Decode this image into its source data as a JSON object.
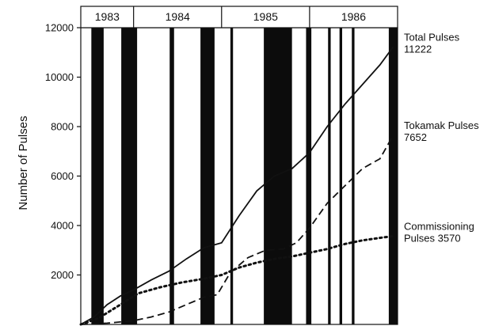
{
  "chart_data": {
    "type": "line",
    "ylabel": "Number of Pulses",
    "ylim": [
      0,
      12000
    ],
    "y_ticks": [
      2000,
      4000,
      6000,
      8000,
      10000,
      12000
    ],
    "xlim": [
      1983.4,
      1987.0
    ],
    "years": [
      {
        "label": "1983",
        "start": 1983.4,
        "end": 1984.0
      },
      {
        "label": "1984",
        "start": 1984.0,
        "end": 1985.0
      },
      {
        "label": "1985",
        "start": 1985.0,
        "end": 1986.0
      },
      {
        "label": "1986",
        "start": 1986.0,
        "end": 1987.0
      }
    ],
    "shutdowns": [
      [
        1983.52,
        1983.66
      ],
      [
        1983.86,
        1984.04
      ],
      [
        1984.41,
        1984.46
      ],
      [
        1984.76,
        1984.92
      ],
      [
        1985.1,
        1985.13
      ],
      [
        1985.48,
        1985.8
      ],
      [
        1985.96,
        1986.02
      ],
      [
        1986.21,
        1986.24
      ],
      [
        1986.34,
        1986.37
      ],
      [
        1986.48,
        1986.51
      ],
      [
        1986.9,
        1987.0
      ]
    ],
    "series": [
      {
        "name": "Total Pulses",
        "style": "solid",
        "color": "#111111",
        "x": [
          1983.4,
          1983.55,
          1983.7,
          1983.85,
          1984.0,
          1984.2,
          1984.4,
          1984.6,
          1984.8,
          1985.0,
          1985.2,
          1985.4,
          1985.6,
          1985.8,
          1986.0,
          1986.2,
          1986.4,
          1986.6,
          1986.8,
          1986.95
        ],
        "y": [
          0,
          300,
          800,
          1150,
          1400,
          1800,
          2150,
          2650,
          3100,
          3300,
          4400,
          5400,
          6000,
          6300,
          6950,
          8000,
          8900,
          9700,
          10500,
          11222
        ]
      },
      {
        "name": "Tokamak Pulses",
        "style": "dashed",
        "color": "#111111",
        "x": [
          1983.4,
          1983.7,
          1984.0,
          1984.2,
          1984.4,
          1984.6,
          1984.8,
          1984.95,
          1985.1,
          1985.3,
          1985.5,
          1985.7,
          1985.85,
          1986.0,
          1986.2,
          1986.4,
          1986.6,
          1986.8,
          1986.95
        ],
        "y": [
          0,
          50,
          150,
          300,
          500,
          800,
          1100,
          1200,
          2100,
          2700,
          3000,
          3050,
          3300,
          3900,
          4900,
          5600,
          6300,
          6700,
          7652
        ]
      },
      {
        "name": "Commissioning Pulses",
        "style": "dotted",
        "color": "#111111",
        "x": [
          1983.4,
          1983.6,
          1983.85,
          1984.05,
          1984.3,
          1984.55,
          1984.8,
          1985.0,
          1985.2,
          1985.4,
          1985.6,
          1985.8,
          1986.0,
          1986.2,
          1986.4,
          1986.6,
          1986.8,
          1986.95
        ],
        "y": [
          0,
          250,
          800,
          1250,
          1500,
          1700,
          1850,
          2000,
          2300,
          2500,
          2650,
          2750,
          2900,
          3050,
          3250,
          3400,
          3500,
          3570
        ]
      }
    ],
    "annotations": [
      {
        "series": 0,
        "line1": "Total Pulses",
        "line2": "11222"
      },
      {
        "series": 1,
        "line1": "Tokamak Pulses",
        "line2": "7652"
      },
      {
        "series": 2,
        "line1": "Commissioning",
        "line2": "Pulses 3570"
      }
    ]
  }
}
